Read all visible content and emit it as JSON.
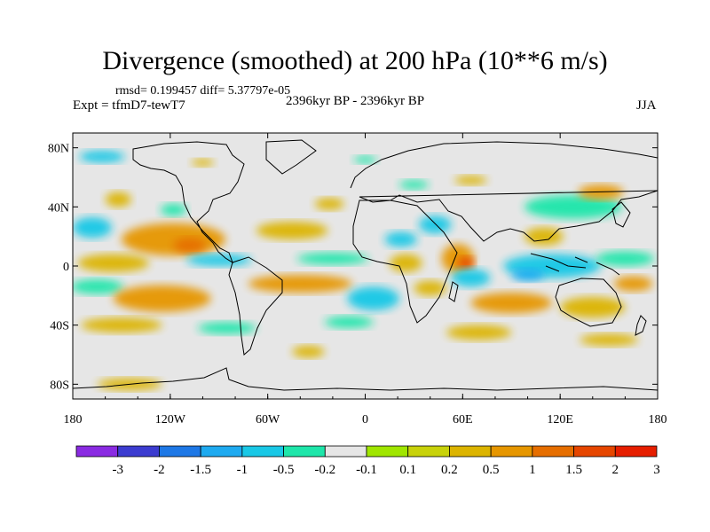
{
  "chart_data": {
    "type": "heatmap",
    "title": "Divergence (smoothed) at 200 hPa (10**6 m/s)",
    "stats": "rmsd= 0.199457 diff= 5.37797e-05",
    "experiment": "Expt = tfmD7-tewT7",
    "period": "2396kyr BP - 2396kyr BP",
    "season": "JJA",
    "x_range": [
      -180,
      180
    ],
    "y_range": [
      -90,
      90
    ],
    "x_ticks": [
      {
        "value": -180,
        "label": "180"
      },
      {
        "value": -120,
        "label": "120W"
      },
      {
        "value": -60,
        "label": "60W"
      },
      {
        "value": 0,
        "label": "0"
      },
      {
        "value": 60,
        "label": "60E"
      },
      {
        "value": 120,
        "label": "120E"
      },
      {
        "value": 180,
        "label": "180"
      }
    ],
    "y_ticks": [
      {
        "value": 80,
        "label": "80N"
      },
      {
        "value": 40,
        "label": "40N"
      },
      {
        "value": 0,
        "label": "0"
      },
      {
        "value": -40,
        "label": "40S"
      },
      {
        "value": -80,
        "label": "80S"
      }
    ],
    "colorbar": {
      "colors": [
        "#8a2be2",
        "#3c3cd0",
        "#1e78e6",
        "#1eaaf0",
        "#19c8e6",
        "#1ee6aa",
        "#e6e6e6",
        "#a0e600",
        "#c8d20a",
        "#dcb400",
        "#e69600",
        "#e66e00",
        "#e64600",
        "#e61e00"
      ],
      "labels": [
        "-3",
        "-2",
        "-1.5",
        "-1",
        "-0.5",
        "-0.2",
        "-0.1",
        "0.1",
        "0.2",
        "0.5",
        "1",
        "1.5",
        "2",
        "3"
      ]
    },
    "anomalies": [
      {
        "lon": -162,
        "lat": 74,
        "rx": 14,
        "ry": 4,
        "level": -0.5
      },
      {
        "lon": -100,
        "lat": 70,
        "rx": 7,
        "ry": 2.5,
        "level": 0.2
      },
      {
        "lon": 0,
        "lat": 72,
        "rx": 7,
        "ry": 2.5,
        "level": -0.2
      },
      {
        "lon": -152,
        "lat": 45,
        "rx": 8,
        "ry": 5,
        "level": 0.2
      },
      {
        "lon": -118,
        "lat": 38,
        "rx": 8,
        "ry": 4,
        "level": -0.2
      },
      {
        "lon": -22,
        "lat": 42,
        "rx": 9,
        "ry": 4,
        "level": 0.2
      },
      {
        "lon": 30,
        "lat": 55,
        "rx": 9,
        "ry": 3,
        "level": -0.2
      },
      {
        "lon": 65,
        "lat": 58,
        "rx": 10,
        "ry": 3,
        "level": 0.2
      },
      {
        "lon": 128,
        "lat": 40,
        "rx": 30,
        "ry": 8,
        "level": -0.2
      },
      {
        "lon": 145,
        "lat": 50,
        "rx": 14,
        "ry": 5,
        "level": 0.5
      },
      {
        "lon": -168,
        "lat": 26,
        "rx": 12,
        "ry": 7,
        "level": -0.5
      },
      {
        "lon": -118,
        "lat": 18,
        "rx": 32,
        "ry": 11,
        "level": 0.5
      },
      {
        "lon": -108,
        "lat": 14,
        "rx": 10,
        "ry": 5,
        "level": 1
      },
      {
        "lon": -45,
        "lat": 24,
        "rx": 22,
        "ry": 6,
        "level": 0.2
      },
      {
        "lon": 22,
        "lat": 18,
        "rx": 10,
        "ry": 5,
        "level": -0.5
      },
      {
        "lon": 43,
        "lat": 28,
        "rx": 10,
        "ry": 6,
        "level": -0.5
      },
      {
        "lon": -155,
        "lat": 2,
        "rx": 22,
        "ry": 6,
        "level": 0.2
      },
      {
        "lon": -90,
        "lat": 4,
        "rx": 20,
        "ry": 4,
        "level": -0.5
      },
      {
        "lon": -20,
        "lat": 5,
        "rx": 22,
        "ry": 4,
        "level": -0.2
      },
      {
        "lon": 25,
        "lat": 2,
        "rx": 10,
        "ry": 6,
        "level": 0.2
      },
      {
        "lon": 57,
        "lat": 5,
        "rx": 10,
        "ry": 10,
        "level": 0.5
      },
      {
        "lon": 62,
        "lat": 2,
        "rx": 5,
        "ry": 4,
        "level": 1.5
      },
      {
        "lon": 65,
        "lat": -8,
        "rx": 12,
        "ry": 6,
        "level": -0.5
      },
      {
        "lon": 115,
        "lat": 0,
        "rx": 30,
        "ry": 8,
        "level": -0.5
      },
      {
        "lon": 100,
        "lat": -6,
        "rx": 10,
        "ry": 4,
        "level": -1
      },
      {
        "lon": 160,
        "lat": 5,
        "rx": 18,
        "ry": 5,
        "level": -0.2
      },
      {
        "lon": 110,
        "lat": 20,
        "rx": 12,
        "ry": 6,
        "level": 0.2
      },
      {
        "lon": -165,
        "lat": -14,
        "rx": 16,
        "ry": 5,
        "level": -0.2
      },
      {
        "lon": -125,
        "lat": -22,
        "rx": 30,
        "ry": 9,
        "level": 0.5
      },
      {
        "lon": -40,
        "lat": -12,
        "rx": 32,
        "ry": 6,
        "level": 0.5
      },
      {
        "lon": 5,
        "lat": -22,
        "rx": 16,
        "ry": 8,
        "level": -0.5
      },
      {
        "lon": 40,
        "lat": -15,
        "rx": 10,
        "ry": 5,
        "level": 0.2
      },
      {
        "lon": 90,
        "lat": -25,
        "rx": 25,
        "ry": 7,
        "level": 0.5
      },
      {
        "lon": 140,
        "lat": -28,
        "rx": 20,
        "ry": 7,
        "level": 0.2
      },
      {
        "lon": 165,
        "lat": -12,
        "rx": 12,
        "ry": 5,
        "level": 0.5
      },
      {
        "lon": -150,
        "lat": -40,
        "rx": 25,
        "ry": 5,
        "level": 0.2
      },
      {
        "lon": -85,
        "lat": -42,
        "rx": 18,
        "ry": 4,
        "level": -0.2
      },
      {
        "lon": -10,
        "lat": -38,
        "rx": 15,
        "ry": 4,
        "level": -0.2
      },
      {
        "lon": 70,
        "lat": -45,
        "rx": 20,
        "ry": 5,
        "level": 0.2
      },
      {
        "lon": 150,
        "lat": -50,
        "rx": 18,
        "ry": 4,
        "level": 0.2
      },
      {
        "lon": -35,
        "lat": -58,
        "rx": 10,
        "ry": 4,
        "level": 0.2
      },
      {
        "lon": -145,
        "lat": -80,
        "rx": 20,
        "ry": 4,
        "level": 0.2
      }
    ]
  }
}
